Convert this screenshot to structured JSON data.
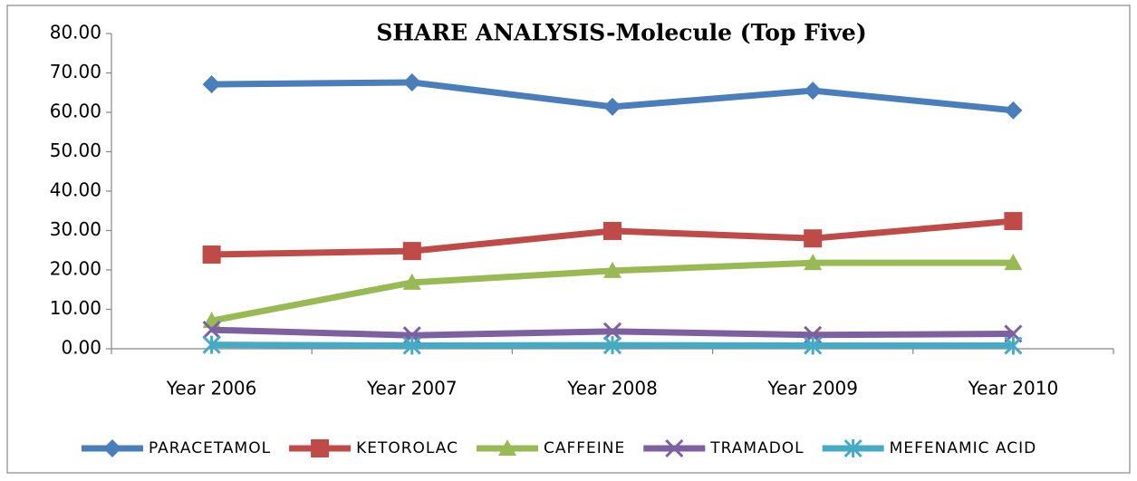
{
  "chart_data": {
    "type": "line",
    "title": "SHARE ANALYSIS-Molecule (Top Five)",
    "categories": [
      "Year 2006",
      "Year 2007",
      "Year 2008",
      "Year 2009",
      "Year 2010"
    ],
    "series": [
      {
        "name": "PARACETAMOL",
        "color": "#4a7ebb",
        "marker": "diamond",
        "values": [
          67.1,
          67.6,
          61.4,
          65.5,
          60.5
        ]
      },
      {
        "name": "KETOROLAC",
        "color": "#be4b48",
        "marker": "square",
        "values": [
          23.9,
          24.8,
          29.9,
          28.0,
          32.4
        ]
      },
      {
        "name": "CAFFEINE",
        "color": "#98b954",
        "marker": "triangle",
        "values": [
          7.1,
          16.8,
          19.8,
          21.8,
          21.8
        ]
      },
      {
        "name": "TRAMADOL",
        "color": "#7d60a0",
        "marker": "x",
        "values": [
          4.8,
          3.4,
          4.4,
          3.5,
          3.8
        ]
      },
      {
        "name": "MEFENAMIC ACID",
        "color": "#46aac5",
        "marker": "asterisk",
        "values": [
          1.0,
          0.8,
          0.9,
          0.8,
          0.8
        ]
      }
    ],
    "ylim": [
      0,
      80
    ],
    "yticks": [
      {
        "value": 0,
        "label": "0.00"
      },
      {
        "value": 10,
        "label": "10.00"
      },
      {
        "value": 20,
        "label": "20.00"
      },
      {
        "value": 30,
        "label": "30.00"
      },
      {
        "value": 40,
        "label": "40.00"
      },
      {
        "value": 50,
        "label": "50.00"
      },
      {
        "value": 60,
        "label": "60.00"
      },
      {
        "value": 70,
        "label": "70.00"
      },
      {
        "value": 80,
        "label": "80.00"
      }
    ],
    "legend": "bottom"
  }
}
